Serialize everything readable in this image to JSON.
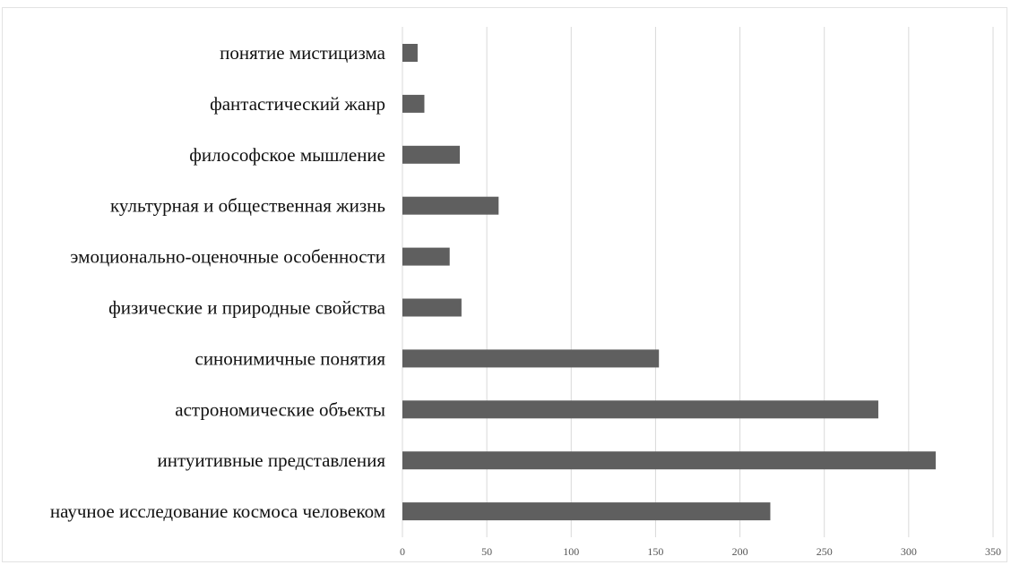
{
  "chart_data": {
    "type": "bar",
    "orientation": "horizontal",
    "categories": [
      "понятие мистицизма",
      "фантастический жанр",
      "философское мышление",
      "культурная и общественная жизнь",
      "эмоционально-оценочные особенности",
      "физические и природные свойства",
      "синонимичные понятия",
      "астрономические объекты",
      "интуитивные представления",
      "научное исследование космоса человеком"
    ],
    "values": [
      9,
      13,
      34,
      57,
      28,
      35,
      152,
      282,
      316,
      218
    ],
    "xlim": [
      0,
      350
    ],
    "x_ticks": [
      "0",
      "50",
      "100",
      "150",
      "200",
      "250",
      "300",
      "350"
    ],
    "title": "",
    "xlabel": "",
    "ylabel": "",
    "grid": "vertical",
    "legend": "none",
    "bar_color": "#5f5f5f",
    "grid_color": "#d9d9d9"
  }
}
